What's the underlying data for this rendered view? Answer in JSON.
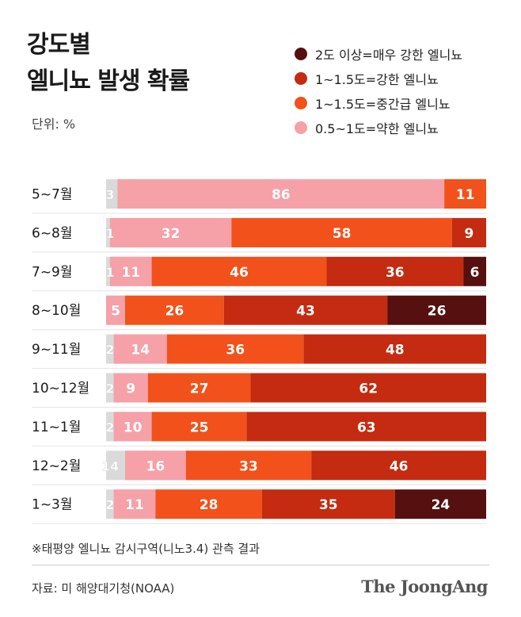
{
  "title": {
    "line1": "강도별",
    "line2": "엘니뇨 발생 확률"
  },
  "unit": "단위: %",
  "note": "※태평양 엘니뇨 감시구역(니노3.4) 관측 결과",
  "source": "자료: 미 해양대기청(NOAA)",
  "brand": "The JoongAng",
  "colors": {
    "weak": "#F6A0A8",
    "moderate": "#F2511B",
    "strong": "#C42B10",
    "very_strong": "#55100F",
    "neutral": "#DADADA"
  },
  "chart_data": {
    "type": "bar",
    "orientation": "horizontal",
    "stacked": true,
    "categories": [
      "5~7월",
      "6~8월",
      "7~9월",
      "8~10월",
      "9~11월",
      "10~12월",
      "11~1월",
      "12~2월",
      "1~3월"
    ],
    "series": [
      {
        "name": "0.5~1도=약한 엘니뇨",
        "color": "#F6A0A8",
        "values": [
          86,
          32,
          11,
          5,
          14,
          9,
          10,
          16,
          11
        ]
      },
      {
        "name": "1~1.5도=중간급 엘니뇨",
        "color": "#F2511B",
        "values": [
          11,
          58,
          46,
          26,
          36,
          27,
          25,
          33,
          28
        ]
      },
      {
        "name": "1~1.5도=강한 엘니뇨",
        "color": "#C42B10",
        "values": [
          0,
          9,
          36,
          43,
          48,
          62,
          63,
          46,
          35
        ]
      },
      {
        "name": "2도 이상=매우 강한 엘니뇨",
        "color": "#55100F",
        "values": [
          0,
          0,
          6,
          26,
          0,
          0,
          0,
          0,
          24
        ]
      }
    ],
    "leading_values": [
      "3",
      "1",
      "1",
      "",
      "2",
      "2",
      "2",
      "14",
      "2"
    ],
    "legend": [
      {
        "label": "2도 이상=매우 강한 엘니뇨",
        "color": "#55100F"
      },
      {
        "label": "1~1.5도=강한 엘니뇨",
        "color": "#C42B10"
      },
      {
        "label": "1~1.5도=중간급 엘니뇨",
        "color": "#F2511B"
      },
      {
        "label": "0.5~1도=약한 엘니뇨",
        "color": "#F6A0A8"
      }
    ],
    "xlim": [
      0,
      100
    ],
    "legend_position": "top-right",
    "grid": false
  }
}
